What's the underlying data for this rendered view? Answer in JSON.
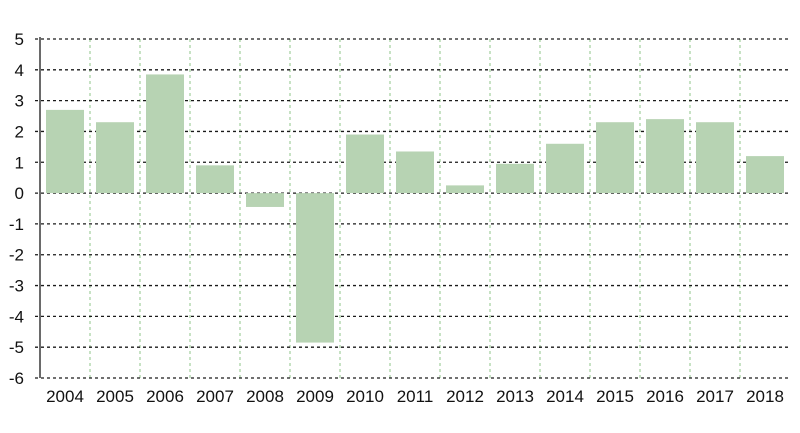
{
  "chart_data": {
    "type": "bar",
    "categories": [
      "2004",
      "2005",
      "2006",
      "2007",
      "2008",
      "2009",
      "2010",
      "2011",
      "2012",
      "2013",
      "2014",
      "2015",
      "2016",
      "2017",
      "2018"
    ],
    "values": [
      2.7,
      2.3,
      3.85,
      0.9,
      -0.45,
      -4.85,
      1.9,
      1.35,
      0.25,
      0.95,
      1.6,
      2.3,
      2.4,
      2.3,
      1.2
    ],
    "ylim": [
      -6,
      5
    ],
    "yticks": [
      5,
      4,
      3,
      2,
      1,
      0,
      -1,
      -2,
      -3,
      -4,
      -5,
      -6
    ],
    "ytick_labels": [
      "5",
      "4",
      "3",
      "2",
      "1",
      "0",
      "-1",
      "-2",
      "-3",
      "-4",
      "-5",
      "-6"
    ],
    "title": "",
    "xlabel": "",
    "ylabel": "",
    "grid": true,
    "colors": {
      "bar": "#b7d3b3",
      "horizontal_grid": "#1a1a1a",
      "vertical_grid": "#8fc48a",
      "axis": "#1a1a1a"
    }
  }
}
